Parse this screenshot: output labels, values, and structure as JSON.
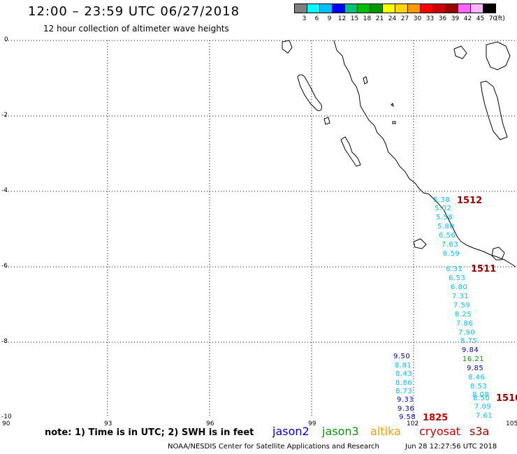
{
  "header": {
    "title": "12:00 – 23:59 UTC 06/27/2018",
    "subtitle": "12 hour collection of altimeter wave heights"
  },
  "legend": {
    "unit": "(ft)",
    "ticks": [
      "3",
      "6",
      "9",
      "12",
      "15",
      "18",
      "21",
      "24",
      "27",
      "30",
      "33",
      "36",
      "39",
      "42",
      "45",
      "70"
    ],
    "colors": [
      "#7f7f7f",
      "#00ffff",
      "#00bfff",
      "#0000ff",
      "#00bf7f",
      "#00bf00",
      "#009900",
      "#ffff00",
      "#ffd700",
      "#ff9900",
      "#ff0000",
      "#cc0000",
      "#990000",
      "#ff66ff",
      "#ffb6ff",
      "#000000"
    ]
  },
  "axes": {
    "y_labels": [
      "0",
      "-2",
      "-4",
      "-6",
      "-8",
      "-10"
    ],
    "x_labels": [
      "90",
      "93",
      "96",
      "99",
      "102",
      "105"
    ]
  },
  "colors": {
    "jason2": "#0000cc",
    "jason3": "#009900",
    "altika": "#ff9900",
    "cryosat": "#cc0000",
    "s3a": "#990000",
    "swh_cyan": "#00bfff"
  },
  "times": [
    {
      "text": "1512",
      "color": "#990000"
    },
    {
      "text": "1511",
      "color": "#990000"
    },
    {
      "text": "1510",
      "color": "#990000"
    },
    {
      "text": "1825",
      "color": "#cc0000"
    }
  ],
  "observations": {
    "track_s3a": [
      "5.38",
      "5.02",
      "5.58",
      "5.80",
      "6.56",
      "7.63",
      "6.59",
      "6.31",
      "6.53",
      "6.80",
      "7.31",
      "7.59",
      "8.25",
      "7.86",
      "7.90",
      "8.75",
      "9.84",
      "16.21",
      "9.85",
      "8.46",
      "8.53",
      "8.08",
      "8.50",
      "7.09",
      "7.61"
    ],
    "track_other": [
      "9.50",
      "8.81",
      "8.43",
      "8.86",
      "8.73",
      "9.33",
      "9.36",
      "9.58"
    ]
  },
  "footer": {
    "note": "note: 1) Time is in UTC; 2) SWH is in feet",
    "satellites": [
      "jason2",
      "jason3",
      "altika",
      "cryosat",
      "s3a"
    ],
    "credit": "NOAA/NESDIS Center for Satellite Applications and Research",
    "timestamp": "Jun 28 12:27:56 UTC 2018"
  }
}
